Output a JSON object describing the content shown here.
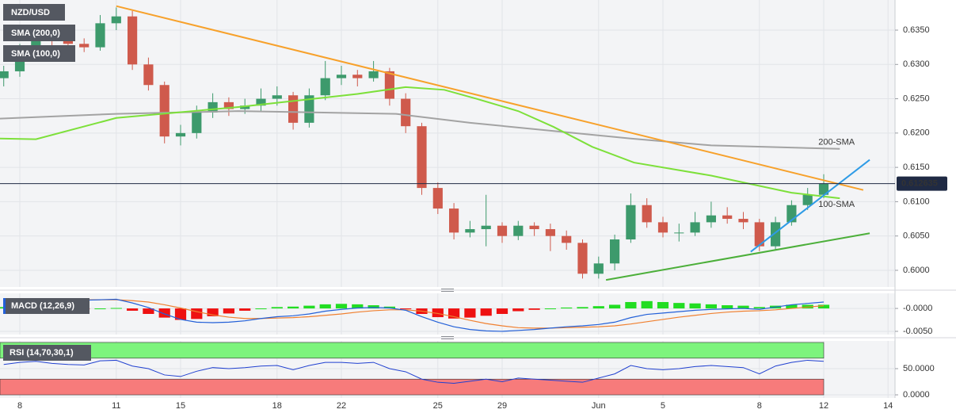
{
  "chart_data": [
    {
      "type": "candlestick",
      "name": "NZD/USD",
      "xlim": [
        -0.616,
        27.217
      ],
      "ylim": [
        0.59757,
        0.63939
      ],
      "xticks": [
        {
          "value": 0,
          "label": "8"
        },
        {
          "value": 3,
          "label": "11"
        },
        {
          "value": 5,
          "label": "15"
        },
        {
          "value": 8,
          "label": "18"
        },
        {
          "value": 10,
          "label": "22"
        },
        {
          "value": 13,
          "label": "25"
        },
        {
          "value": 15,
          "label": "29"
        },
        {
          "value": 18,
          "label": "Jun"
        },
        {
          "value": 20,
          "label": "5"
        },
        {
          "value": 23,
          "label": "8"
        },
        {
          "value": 25,
          "label": "12"
        },
        {
          "value": 27,
          "label": "14"
        }
      ],
      "yticks": [
        {
          "value": 0.6,
          "label": "0.6000"
        },
        {
          "value": 0.605,
          "label": "0.6050"
        },
        {
          "value": 0.61,
          "label": "0.6100"
        },
        {
          "value": 0.615,
          "label": "0.6150"
        },
        {
          "value": 0.62,
          "label": "0.6200"
        },
        {
          "value": 0.625,
          "label": "0.6250"
        },
        {
          "value": 0.63,
          "label": "0.6300"
        },
        {
          "value": 0.635,
          "label": "0.6350"
        }
      ],
      "grid": true,
      "up_color": "#3d9a6c",
      "down_color": "#cf5a4c",
      "x": [
        -0.5,
        0,
        0.5,
        1,
        1.5,
        2,
        2.5,
        3,
        3.5,
        4,
        4.5,
        5,
        5.5,
        6,
        6.5,
        7,
        7.5,
        8,
        8.5,
        9,
        9.5,
        10,
        10.5,
        11,
        11.5,
        12,
        12.5,
        13,
        13.5,
        14,
        14.5,
        15,
        15.5,
        16,
        16.5,
        17,
        17.5,
        18,
        18.5,
        19,
        19.5,
        20,
        20.5,
        21,
        21.5,
        22,
        22.5,
        23,
        23.5,
        24,
        24.5,
        25
      ],
      "candles": [
        [
          0.628,
          0.6298,
          0.6268,
          0.629
        ],
        [
          0.629,
          0.633,
          0.6282,
          0.632
        ],
        [
          0.632,
          0.6352,
          0.6312,
          0.634
        ],
        [
          0.634,
          0.6348,
          0.6325,
          0.6335
        ],
        [
          0.6335,
          0.6342,
          0.632,
          0.633
        ],
        [
          0.633,
          0.6338,
          0.6318,
          0.6325
        ],
        [
          0.6325,
          0.6372,
          0.632,
          0.636
        ],
        [
          0.636,
          0.6383,
          0.635,
          0.637
        ],
        [
          0.637,
          0.6378,
          0.6292,
          0.63
        ],
        [
          0.63,
          0.631,
          0.6262,
          0.627
        ],
        [
          0.627,
          0.6275,
          0.6185,
          0.6195
        ],
        [
          0.6195,
          0.6212,
          0.6182,
          0.62
        ],
        [
          0.62,
          0.624,
          0.6192,
          0.623
        ],
        [
          0.623,
          0.6258,
          0.6222,
          0.6245
        ],
        [
          0.6245,
          0.6252,
          0.6225,
          0.6235
        ],
        [
          0.6235,
          0.625,
          0.6228,
          0.624
        ],
        [
          0.624,
          0.6265,
          0.6232,
          0.625
        ],
        [
          0.625,
          0.6268,
          0.624,
          0.6255
        ],
        [
          0.6255,
          0.626,
          0.6205,
          0.6215
        ],
        [
          0.6215,
          0.6265,
          0.6208,
          0.6255
        ],
        [
          0.6255,
          0.6305,
          0.6248,
          0.628
        ],
        [
          0.628,
          0.6298,
          0.627,
          0.6285
        ],
        [
          0.6285,
          0.6292,
          0.6268,
          0.628
        ],
        [
          0.628,
          0.6305,
          0.6275,
          0.629
        ],
        [
          0.629,
          0.6295,
          0.624,
          0.625
        ],
        [
          0.625,
          0.6258,
          0.62,
          0.621
        ],
        [
          0.621,
          0.6215,
          0.611,
          0.612
        ],
        [
          0.612,
          0.6128,
          0.6082,
          0.609
        ],
        [
          0.609,
          0.6098,
          0.6045,
          0.6055
        ],
        [
          0.6055,
          0.6072,
          0.6048,
          0.606
        ],
        [
          0.606,
          0.611,
          0.6035,
          0.6065
        ],
        [
          0.6065,
          0.607,
          0.604,
          0.605
        ],
        [
          0.605,
          0.6072,
          0.6044,
          0.6065
        ],
        [
          0.6065,
          0.607,
          0.605,
          0.606
        ],
        [
          0.606,
          0.6068,
          0.6028,
          0.605
        ],
        [
          0.605,
          0.6058,
          0.603,
          0.604
        ],
        [
          0.604,
          0.6045,
          0.5988,
          0.5995
        ],
        [
          0.5995,
          0.602,
          0.5988,
          0.601
        ],
        [
          0.601,
          0.6052,
          0.6,
          0.6045
        ],
        [
          0.6045,
          0.6112,
          0.604,
          0.6095
        ],
        [
          0.6095,
          0.6105,
          0.6062,
          0.607
        ],
        [
          0.607,
          0.6078,
          0.6048,
          0.6055
        ],
        [
          0.6055,
          0.6068,
          0.6042,
          0.6055
        ],
        [
          0.6055,
          0.6085,
          0.605,
          0.607
        ],
        [
          0.607,
          0.61,
          0.6062,
          0.608
        ],
        [
          0.608,
          0.6092,
          0.6068,
          0.6075
        ],
        [
          0.6075,
          0.6085,
          0.606,
          0.607
        ],
        [
          0.607,
          0.6075,
          0.6028,
          0.6035
        ],
        [
          0.6035,
          0.6078,
          0.603,
          0.607
        ],
        [
          0.607,
          0.6102,
          0.6065,
          0.6095
        ],
        [
          0.6095,
          0.612,
          0.6088,
          0.611
        ],
        [
          0.611,
          0.614,
          0.6105,
          0.61264
        ]
      ],
      "series": [
        {
          "name": "SMA (200,0)",
          "label": "200-SMA",
          "label_side": "above",
          "color": "#a3a3a3",
          "x": [
            -0.616,
            3,
            6.8,
            11.7,
            14,
            16.6,
            19,
            21.5,
            25.5
          ],
          "values": [
            0.6221,
            0.6228,
            0.6232,
            0.6228,
            0.6215,
            0.6203,
            0.6192,
            0.6182,
            0.6177
          ]
        },
        {
          "name": "SMA (100,0)",
          "label": "100-SMA",
          "label_side": "below",
          "color": "#7de03a",
          "x": [
            -0.616,
            0.5,
            3,
            6.8,
            10.5,
            12,
            13.2,
            14.2,
            15.5,
            16.6,
            17.8,
            19.1,
            21.5,
            24,
            25.5
          ],
          "values": [
            0.6192,
            0.6191,
            0.6222,
            0.6238,
            0.6257,
            0.6267,
            0.6263,
            0.625,
            0.6232,
            0.6209,
            0.618,
            0.6157,
            0.6138,
            0.6113,
            0.6105
          ]
        }
      ],
      "trendlines": [
        {
          "color": "#f7a12b",
          "x": [
            3,
            26.23
          ],
          "values": [
            0.6385,
            0.6117
          ]
        },
        {
          "color": "#2e9be6",
          "x": [
            22.73,
            26.43
          ],
          "values": [
            0.6027,
            0.6161
          ]
        },
        {
          "color": "#4caf3a",
          "x": [
            18.23,
            26.43
          ],
          "values": [
            0.5986,
            0.6054
          ]
        }
      ],
      "last_price": 0.612635,
      "last_price_color": "#1f2a44"
    },
    {
      "type": "macd",
      "name": "MACD (12,26,9)",
      "ylim": [
        -0.0057,
        0.0033
      ],
      "yticks": [
        {
          "value": 0,
          "label": "-0.0000"
        },
        {
          "value": -0.005,
          "label": "-0.0050"
        }
      ],
      "grid": true,
      "macd_color": "#2360d8",
      "signal_color": "#f08030",
      "positive_color": "#22dd22",
      "negative_color": "#ee1111",
      "macd": [
        0.0019,
        0.0019,
        0.002,
        0.002,
        0.0019,
        0.0018,
        0.0019,
        0.002,
        0.0012,
        0.0002,
        -0.0012,
        -0.0024,
        -0.003,
        -0.0031,
        -0.003,
        -0.0027,
        -0.0022,
        -0.0018,
        -0.0016,
        -0.0012,
        -0.0006,
        -0.0002,
        0.0001,
        0.0002,
        0.0001,
        -0.0004,
        -0.0018,
        -0.003,
        -0.004,
        -0.0046,
        -0.0049,
        -0.005,
        -0.0048,
        -0.0046,
        -0.0043,
        -0.004,
        -0.0038,
        -0.0035,
        -0.003,
        -0.002,
        -0.0013,
        -0.001,
        -0.0007,
        -0.0004,
        -0.0002,
        -0.0001,
        0.0,
        -0.0002,
        0.0003,
        0.0008,
        0.0011,
        0.0014
      ],
      "signal": [
        0.0016,
        0.0017,
        0.0018,
        0.0019,
        0.0019,
        0.0019,
        0.0019,
        0.0019,
        0.0017,
        0.0014,
        0.0008,
        0.0001,
        -0.0007,
        -0.0014,
        -0.0019,
        -0.0022,
        -0.0022,
        -0.0021,
        -0.002,
        -0.0018,
        -0.0015,
        -0.0012,
        -0.0008,
        -0.0005,
        -0.0003,
        -0.0003,
        -0.0006,
        -0.0011,
        -0.0018,
        -0.0026,
        -0.0033,
        -0.0038,
        -0.0042,
        -0.0043,
        -0.0043,
        -0.0042,
        -0.0041,
        -0.004,
        -0.0038,
        -0.0034,
        -0.0029,
        -0.0024,
        -0.0019,
        -0.0015,
        -0.0011,
        -0.0008,
        -0.0006,
        -0.0005,
        -0.0003,
        0.0,
        0.0003,
        0.0006
      ],
      "histogram": [
        0.0003,
        0.0002,
        0.0002,
        0.0001,
        0,
        -0.0001,
        0,
        0.0001,
        -0.0005,
        -0.0012,
        -0.002,
        -0.0025,
        -0.0023,
        -0.0017,
        -0.0011,
        -0.0005,
        0,
        0.0003,
        0.0004,
        0.0006,
        0.0009,
        0.001,
        0.0009,
        0.0007,
        0.0004,
        -0.0001,
        -0.0012,
        -0.0019,
        -0.0022,
        -0.002,
        -0.0016,
        -0.0012,
        -0.0006,
        -0.0003,
        0,
        0.0002,
        0.0003,
        0.0005,
        0.0008,
        0.0014,
        0.0016,
        0.0014,
        0.0012,
        0.0011,
        0.0009,
        0.0007,
        0.0006,
        0.0003,
        0.0006,
        0.0008,
        0.0008,
        0.0008
      ]
    },
    {
      "type": "line",
      "name": "RSI (14,70,30,1)",
      "ylim": [
        -6,
        103
      ],
      "yticks": [
        {
          "value": 50,
          "label": "50.0000"
        },
        {
          "value": 0,
          "label": "0.0000"
        }
      ],
      "grid": true,
      "color": "#2040d0",
      "bands": [
        {
          "from": 70,
          "to": 100,
          "color": "#7df47d"
        },
        {
          "from": 0,
          "to": 30,
          "color": "#f77b7b"
        }
      ],
      "values": [
        58,
        62,
        64,
        60,
        58,
        57,
        65,
        66,
        55,
        50,
        38,
        35,
        45,
        52,
        50,
        52,
        55,
        56,
        48,
        56,
        62,
        62,
        60,
        62,
        50,
        44,
        30,
        24,
        22,
        26,
        30,
        25,
        32,
        30,
        28,
        26,
        24,
        32,
        40,
        56,
        50,
        48,
        50,
        54,
        56,
        54,
        52,
        40,
        55,
        62,
        66,
        64
      ]
    }
  ]
}
